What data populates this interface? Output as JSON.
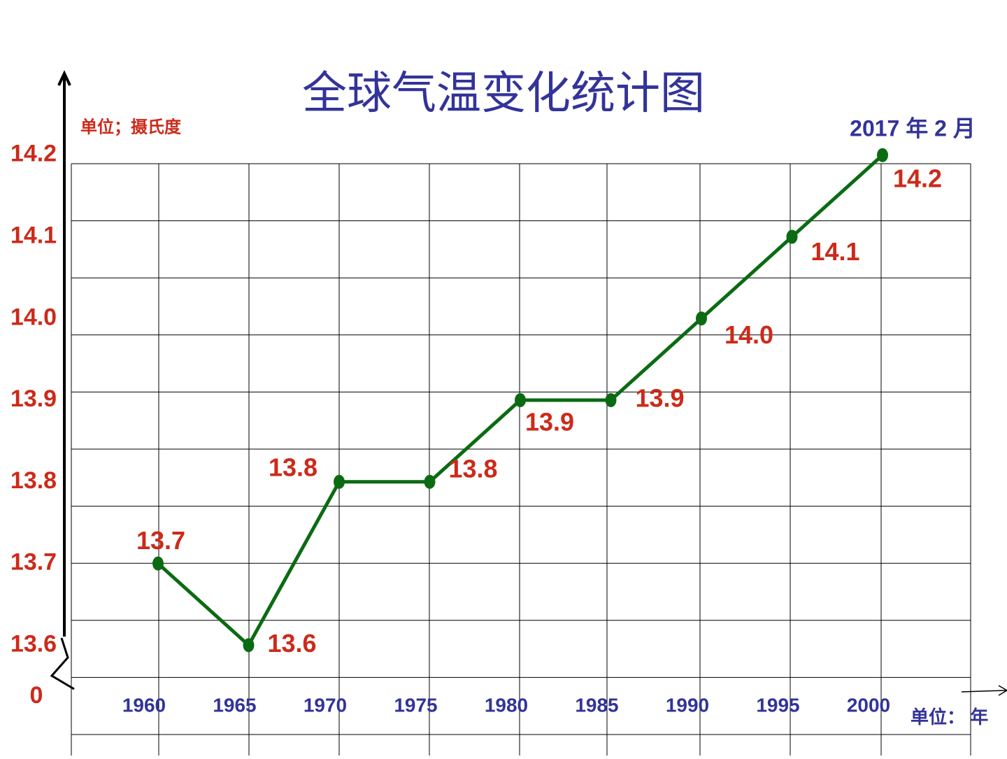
{
  "chart_data": {
    "type": "line",
    "title": "全球气温变化统计图",
    "y_unit_label": "单位；摄氏度",
    "x_unit_label": "单位： 年",
    "annotation": "2017 年 2 月",
    "categories": [
      "1960",
      "1965",
      "1970",
      "1975",
      "1980",
      "1985",
      "1990",
      "1995",
      "2000"
    ],
    "values": [
      13.7,
      13.6,
      13.8,
      13.8,
      13.9,
      13.9,
      14.0,
      14.1,
      14.2
    ],
    "value_labels": [
      "13.7",
      "13.6",
      "13.8",
      "13.8",
      "13.9",
      "13.9",
      "14.0",
      "14.1",
      "14.2"
    ],
    "color": "#0b6b12",
    "ylim": [
      13.56,
      14.3
    ],
    "yticks": [
      {
        "value": 14.2,
        "label": "14.2"
      },
      14.1,
      {
        "value": 14.0,
        "label": "14.0"
      },
      13.9,
      13.8,
      13.7,
      13.6
    ],
    "y_break_tick": 0
  }
}
